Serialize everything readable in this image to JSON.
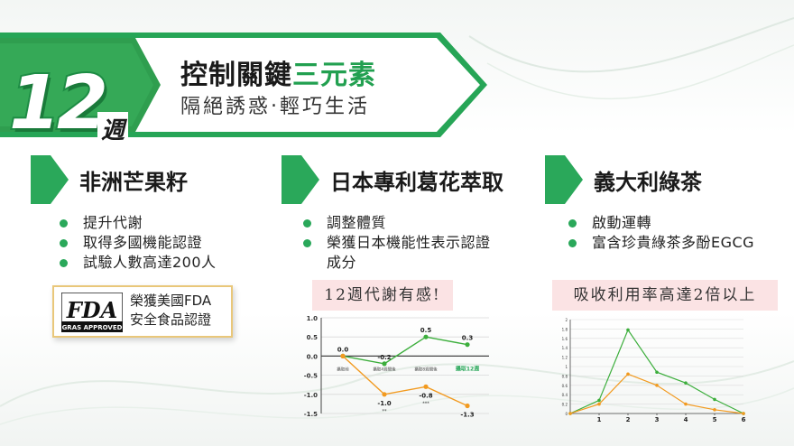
{
  "header": {
    "week_number": "12",
    "week_unit": "週",
    "title_part1": "控制關鍵",
    "title_highlight": "三元素",
    "subtitle": "隔絕誘惑‧輕巧生活"
  },
  "colors": {
    "accent_green": "#22a050",
    "dark_green": "#1d8c44",
    "chart_green": "#3cae3c",
    "chart_orange": "#f29a1f",
    "caption_pink": "#fbe3e4",
    "badge_gold": "#e9c77a"
  },
  "columns": [
    {
      "name": "非洲芒果籽",
      "bullets": [
        "提升代謝",
        "取得多國機能認證",
        "試驗人數高達200人"
      ]
    },
    {
      "name": "日本專利葛花萃取",
      "bullets": [
        "調整體質",
        "榮獲日本機能性表示認證",
        "成分"
      ]
    },
    {
      "name": "義大利綠茶",
      "bullets": [
        "啟動運轉",
        "富含珍貴綠茶多酚EGCG"
      ]
    }
  ],
  "fda_badge": {
    "logo_text": "FDA",
    "logo_subtext": "GRAS APPROVED",
    "line1": "榮獲美國FDA",
    "line2": "安全食品認證",
    "icon": "fda-gras-logo"
  },
  "captions": {
    "chart1": "12週代謝有感!",
    "chart2": "吸收利用率高達2倍以上"
  },
  "chart_data": [
    {
      "type": "line",
      "title": "12週代謝有感!",
      "categories": [
        "攝取前",
        "攝取4週間後",
        "攝取8週間後",
        "攝取12週間後"
      ],
      "highlight_category": "攝取12週",
      "ylim": [
        -1.5,
        1.0
      ],
      "yticks": [
        "1.0",
        "0.5",
        "0.0",
        "-0.5",
        "-1.0",
        "-1.5"
      ],
      "grid": true,
      "series": [
        {
          "values": [
            0.0,
            -0.2,
            0.5,
            0.3
          ],
          "labels": [
            "0.0",
            "-0.2",
            "0.5",
            "0.3"
          ],
          "color": "#3cae3c"
        },
        {
          "values": [
            0.0,
            -1.0,
            -0.8,
            -1.3
          ],
          "labels": [
            "",
            "-1.0",
            "-0.8",
            "-1.3"
          ],
          "annotations": [
            "",
            "**",
            "***",
            ""
          ],
          "color": "#f29a1f"
        }
      ]
    },
    {
      "type": "line",
      "title": "吸收利用率高達2倍以上",
      "x": [
        0,
        1,
        2,
        3,
        4,
        5,
        6
      ],
      "xticks": [
        "1",
        "2",
        "3",
        "4",
        "5",
        "6"
      ],
      "ylim": [
        0,
        2
      ],
      "yticks": [
        "0",
        "0.2",
        "0.4",
        "0.6",
        "0.8",
        "1",
        "1.2",
        "1.4",
        "1.6",
        "1.8",
        "2"
      ],
      "grid": true,
      "series": [
        {
          "values": [
            0,
            0.28,
            1.78,
            0.88,
            0.65,
            0.3,
            0
          ],
          "color": "#3cae3c"
        },
        {
          "values": [
            0,
            0.2,
            0.84,
            0.6,
            0.2,
            0.08,
            0
          ],
          "color": "#f29a1f"
        }
      ]
    }
  ]
}
